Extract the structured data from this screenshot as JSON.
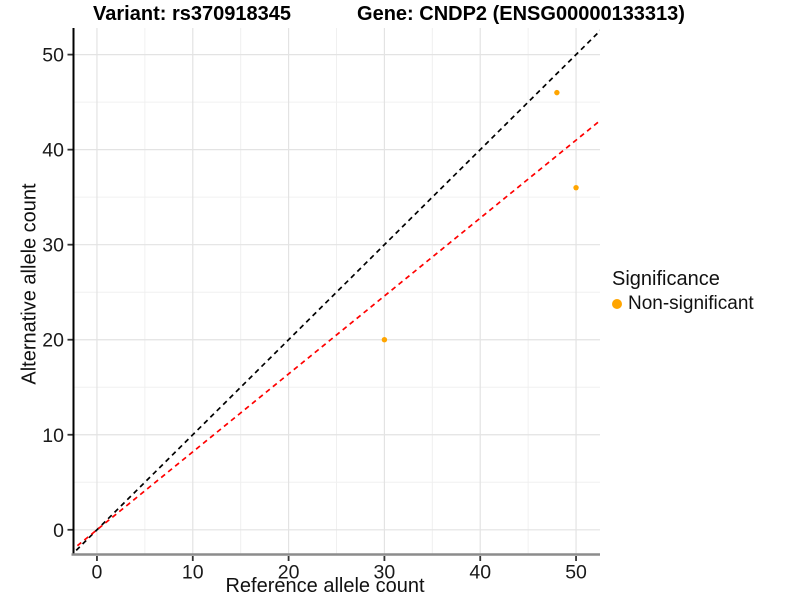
{
  "chart_data": {
    "type": "scatter",
    "titles": {
      "left": "Variant: rs370918345",
      "right": "Gene: CNDP2 (ENSG00000133313)"
    },
    "xlabel": "Reference allele count",
    "ylabel": "Alternative allele count",
    "xlim": [
      -2.5,
      52.5
    ],
    "ylim": [
      -2.6,
      52.8
    ],
    "xticks": [
      0,
      10,
      20,
      30,
      40,
      50
    ],
    "yticks": [
      0,
      10,
      20,
      30,
      40,
      50
    ],
    "minor_step": 5,
    "grid": true,
    "background": "#ffffff",
    "major_grid_color": "#e3e3e3",
    "minor_grid_color": "#f0f0f0",
    "left_axis_color": "#000000",
    "bottom_axis_color": "#8c8c8c",
    "point_color": "#FFA500",
    "points": [
      {
        "x": 30,
        "y": 20
      },
      {
        "x": 48,
        "y": 46
      },
      {
        "x": 50,
        "y": 36
      }
    ],
    "lines": [
      {
        "name": "identity-line",
        "slope": 1,
        "intercept": 0,
        "color": "#000000",
        "dashed": true
      },
      {
        "name": "fit-line",
        "slope": 0.82,
        "intercept": 0,
        "color": "#ff0000",
        "dashed": true
      }
    ],
    "legend": {
      "title": "Significance",
      "position": "right",
      "items": [
        {
          "label": "Non-significant",
          "color": "#FFA500"
        }
      ]
    }
  }
}
